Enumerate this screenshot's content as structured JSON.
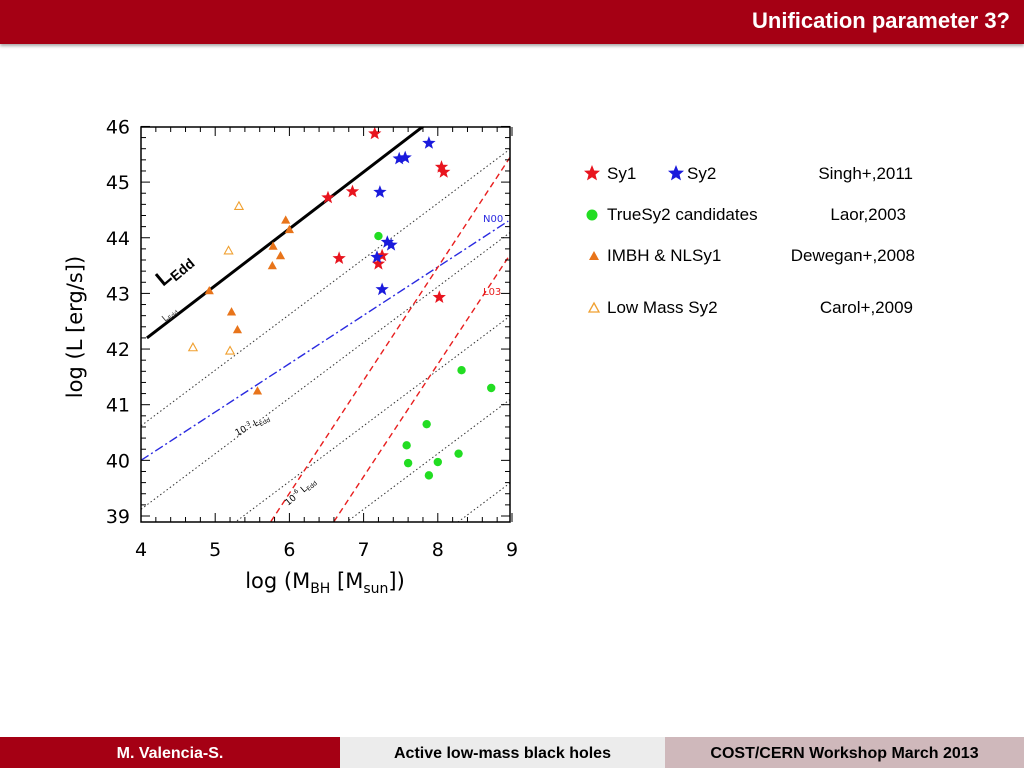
{
  "slide": {
    "title": "Unification parameter 3?"
  },
  "footer": {
    "author": "M. Valencia-S.",
    "talk": "Active low-mass black holes",
    "event": "COST/CERN Workshop March 2013"
  },
  "legend": {
    "row1_a": "Sy1",
    "row1_b": "Sy2",
    "row1_ref": "Singh+,2011",
    "row2": "TrueSy2 candidates",
    "row2_ref": "Laor,2003",
    "row3": "IMBH & NLSy1",
    "row3_ref": "Dewegan+,2008",
    "row4": "Low Mass Sy2",
    "row4_ref": "Carol+,2009"
  },
  "colors": {
    "brand": "#a50014",
    "sy1": "#e8141e",
    "sy2": "#1a1adc",
    "truesy2": "#22dd22",
    "imbh": "#e8741a",
    "lowmass": "#f0a030",
    "n00_line": "#2a2ae0",
    "l03_line": "#e81e1e"
  },
  "icons": [
    "star-icon",
    "filled-triangle-icon",
    "open-triangle-icon",
    "circle-icon"
  ],
  "chart_data": {
    "type": "scatter",
    "xlabel": "log (M_BH [M_sun])",
    "ylabel": "log (L [erg/s])",
    "xlim": [
      4,
      9
    ],
    "ylim": [
      38.8,
      46.2
    ],
    "xticks": [
      "4",
      "5",
      "6",
      "7",
      "8",
      "9"
    ],
    "yticks": [
      "39",
      "40",
      "41",
      "42",
      "43",
      "44",
      "45",
      "46"
    ],
    "annotations": {
      "ledd": "L",
      "ledd_sub": "Edd",
      "ledd_small": "L",
      "ledd_small_sub": "Edd",
      "ledd3": "10",
      "ledd3_exp": "-3",
      "ledd3_L": "L",
      "ledd3_sub": "Edd",
      "ledd6": "10",
      "ledd6_exp": "-6",
      "ledd6_L": "L",
      "ledd6_sub": "Edd",
      "n00": "N00",
      "l03": "L03"
    },
    "lines": {
      "eddington": [
        [
          4.08,
          42.2
        ],
        [
          7.85,
          46.05
        ]
      ],
      "dotted_offsets": [
        -1.5,
        -3,
        -4.5,
        -6,
        -7.5
      ],
      "n00": [
        [
          4.0,
          40.0
        ],
        [
          8.95,
          44.3
        ]
      ],
      "l03_a": [
        [
          5.75,
          38.9
        ],
        [
          9.0,
          45.5
        ]
      ],
      "l03_b": [
        [
          6.6,
          38.9
        ],
        [
          9.0,
          43.75
        ]
      ]
    },
    "series": [
      {
        "name": "Sy1",
        "marker": "star",
        "color": "#e8141e",
        "points": [
          [
            7.15,
            45.87
          ],
          [
            6.52,
            44.72
          ],
          [
            6.85,
            44.83
          ],
          [
            8.05,
            45.27
          ],
          [
            8.08,
            45.18
          ],
          [
            6.67,
            43.63
          ],
          [
            7.25,
            43.68
          ],
          [
            7.2,
            43.53
          ],
          [
            8.02,
            42.93
          ]
        ]
      },
      {
        "name": "Sy2",
        "marker": "star",
        "color": "#1a1adc",
        "points": [
          [
            7.88,
            45.7
          ],
          [
            7.48,
            45.42
          ],
          [
            7.56,
            45.44
          ],
          [
            7.22,
            44.82
          ],
          [
            7.32,
            43.92
          ],
          [
            7.37,
            43.87
          ],
          [
            7.18,
            43.65
          ],
          [
            7.25,
            43.07
          ]
        ]
      },
      {
        "name": "TrueSy2 candidates",
        "marker": "circle",
        "color": "#22dd22",
        "points": [
          [
            7.2,
            44.03
          ],
          [
            8.32,
            41.62
          ],
          [
            8.72,
            41.3
          ],
          [
            7.85,
            40.65
          ],
          [
            7.58,
            40.27
          ],
          [
            7.6,
            39.95
          ],
          [
            8.0,
            39.97
          ],
          [
            8.28,
            40.12
          ],
          [
            7.88,
            39.73
          ]
        ]
      },
      {
        "name": "IMBH & NLSy1",
        "marker": "triangle",
        "color": "#e8741a",
        "points": [
          [
            4.92,
            43.05
          ],
          [
            5.22,
            42.67
          ],
          [
            5.3,
            42.35
          ],
          [
            5.77,
            43.5
          ],
          [
            5.88,
            43.68
          ],
          [
            5.78,
            43.85
          ],
          [
            5.95,
            44.32
          ],
          [
            6.0,
            44.15
          ],
          [
            5.57,
            41.25
          ]
        ]
      },
      {
        "name": "Low Mass Sy2",
        "marker": "open-triangle",
        "color": "#f0a030",
        "points": [
          [
            4.7,
            42.03
          ],
          [
            5.2,
            41.97
          ],
          [
            5.18,
            43.77
          ],
          [
            5.32,
            44.57
          ]
        ]
      }
    ]
  }
}
